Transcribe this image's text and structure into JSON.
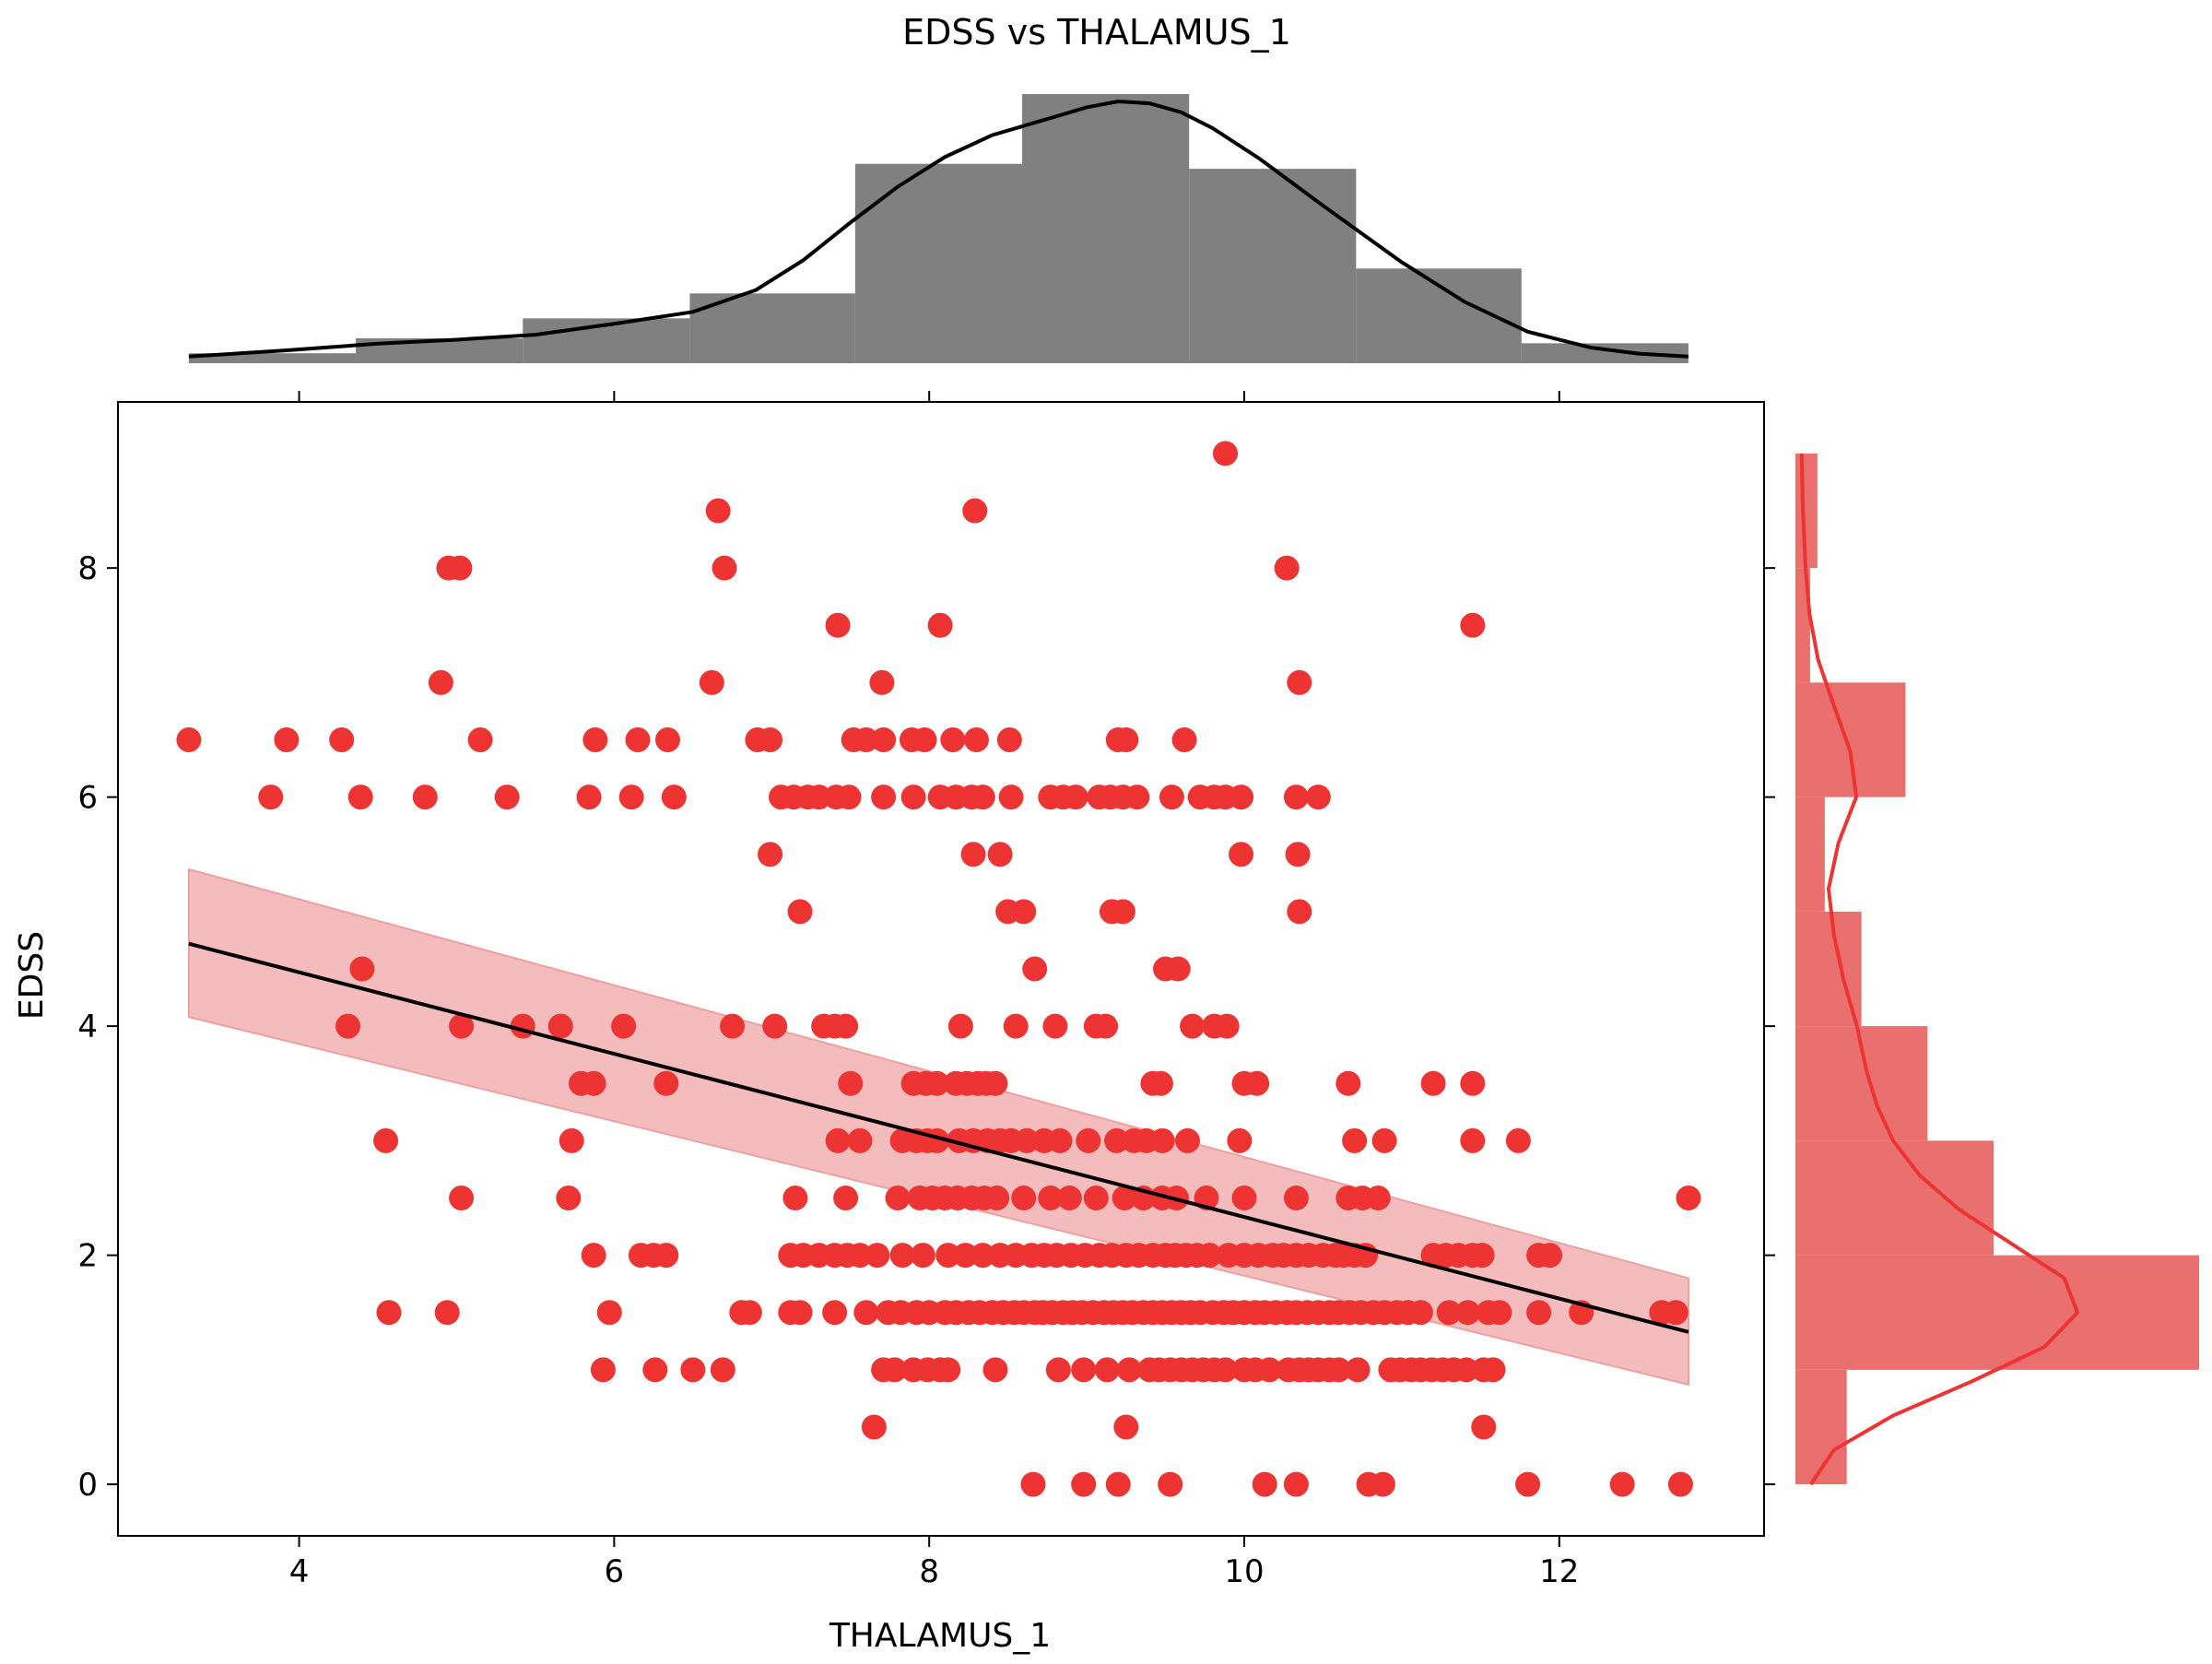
{
  "chart_data": {
    "type": "scatter",
    "title": "EDSS vs THALAMUS_1",
    "xlabel": "THALAMUS_1",
    "ylabel": "EDSS",
    "xlim": [
      2.85,
      13.3
    ],
    "ylim": [
      -0.45,
      9.45
    ],
    "xticks": [
      4,
      6,
      8,
      10,
      12
    ],
    "yticks": [
      0,
      2,
      4,
      6,
      8
    ],
    "grid": false,
    "legend": "none",
    "colors": {
      "points": "#ee3333",
      "regression_line": "#000000",
      "confidence_band": "#f4bcbc",
      "top_histogram": "#808080",
      "top_kde": "#000000",
      "right_histogram": "#ea6f6f",
      "right_kde": "#ee3333"
    },
    "regression": {
      "x": [
        3.3,
        12.82
      ],
      "y": [
        4.72,
        1.33
      ],
      "ci_lower": [
        4.08,
        0.87
      ],
      "ci_upper": [
        5.37,
        1.8
      ]
    },
    "points": [
      {
        "y": 9,
        "x": [
          9.88
        ]
      },
      {
        "y": 8.5,
        "x": [
          6.66,
          8.29
        ]
      },
      {
        "y": 8,
        "x": [
          4.95,
          5.02,
          6.7,
          10.27
        ]
      },
      {
        "y": 7.5,
        "x": [
          7.42,
          8.07,
          11.45
        ]
      },
      {
        "y": 7,
        "x": [
          4.9,
          6.62,
          7.7,
          10.35
        ]
      },
      {
        "y": 6.5,
        "x": [
          3.3,
          3.92,
          4.27,
          5.15,
          5.88,
          6.15,
          6.34,
          6.91,
          6.99,
          7.52,
          7.6,
          7.71,
          7.89,
          7.97,
          8.15,
          8.3,
          8.51,
          9.2,
          9.25,
          9.62
        ]
      },
      {
        "y": 6,
        "x": [
          3.82,
          4.39,
          4.8,
          5.32,
          5.84,
          6.11,
          6.38,
          7.06,
          7.14,
          7.23,
          7.3,
          7.41,
          7.49,
          7.71,
          7.9,
          8.07,
          8.17,
          8.27,
          8.34,
          8.52,
          8.77,
          8.85,
          8.93,
          9.08,
          9.15,
          9.23,
          9.32,
          9.54,
          9.72,
          9.81,
          9.88,
          9.98,
          10.33,
          10.47
        ]
      },
      {
        "y": 5.5,
        "x": [
          6.99,
          8.28,
          8.45,
          9.98,
          10.34
        ]
      },
      {
        "y": 5,
        "x": [
          7.18,
          8.5,
          8.6,
          9.16,
          9.23,
          10.35
        ]
      },
      {
        "y": 4.5,
        "x": [
          4.4,
          8.67,
          9.5,
          9.58
        ]
      },
      {
        "y": 4,
        "x": [
          4.31,
          5.03,
          5.42,
          5.66,
          6.06,
          6.75,
          7.02,
          7.33,
          7.4,
          7.47,
          8.2,
          8.55,
          8.8,
          9.06,
          9.12,
          9.67,
          9.81,
          9.89
        ]
      },
      {
        "y": 3.5,
        "x": [
          5.79,
          5.87,
          6.33,
          7.5,
          7.9,
          7.98,
          8.05,
          8.17,
          8.24,
          8.31,
          8.36,
          8.42,
          9.42,
          9.47,
          10.0,
          10.08,
          10.66,
          11.2,
          11.45
        ]
      },
      {
        "y": 3,
        "x": [
          4.55,
          5.73,
          7.42,
          7.56,
          7.83,
          7.92,
          7.99,
          8.05,
          8.19,
          8.28,
          8.37,
          8.45,
          8.52,
          8.62,
          8.73,
          8.83,
          9.01,
          9.19,
          9.3,
          9.38,
          9.48,
          9.64,
          9.97,
          10.7,
          10.89,
          11.45,
          11.74
        ]
      },
      {
        "y": 2.5,
        "x": [
          5.03,
          5.71,
          7.15,
          7.47,
          7.8,
          7.94,
          8.02,
          8.1,
          8.18,
          8.27,
          8.35,
          8.43,
          8.6,
          8.77,
          8.89,
          9.06,
          9.24,
          9.36,
          9.48,
          9.57,
          9.76,
          10.0,
          10.33,
          10.66,
          10.75,
          10.85,
          12.82
        ]
      },
      {
        "y": 2,
        "x": [
          5.87,
          6.17,
          6.25,
          6.33,
          7.12,
          7.2,
          7.3,
          7.4,
          7.48,
          7.56,
          7.67,
          7.83,
          7.96,
          8.12,
          8.23,
          8.34,
          8.45,
          8.55,
          8.65,
          8.73,
          8.81,
          8.9,
          8.99,
          9.08,
          9.16,
          9.25,
          9.33,
          9.42,
          9.5,
          9.56,
          9.63,
          9.7,
          9.78,
          9.9,
          10.0,
          10.09,
          10.18,
          10.25,
          10.33,
          10.41,
          10.5,
          10.58,
          10.63,
          10.7,
          10.77,
          11.2,
          11.28,
          11.36,
          11.45,
          11.51,
          11.87,
          11.94
        ]
      },
      {
        "y": 1.5,
        "x": [
          4.57,
          4.94,
          5.97,
          6.81,
          6.86,
          7.12,
          7.18,
          7.4,
          7.6,
          7.74,
          7.82,
          7.92,
          8.0,
          8.1,
          8.17,
          8.25,
          8.32,
          8.4,
          8.47,
          8.54,
          8.6,
          8.67,
          8.72,
          8.78,
          8.85,
          8.91,
          8.97,
          9.04,
          9.11,
          9.17,
          9.23,
          9.29,
          9.36,
          9.42,
          9.48,
          9.54,
          9.6,
          9.66,
          9.72,
          9.8,
          9.87,
          9.93,
          10.0,
          10.07,
          10.13,
          10.2,
          10.27,
          10.33,
          10.4,
          10.47,
          10.54,
          10.6,
          10.67,
          10.74,
          10.82,
          10.89,
          10.97,
          11.04,
          11.12,
          11.3,
          11.42,
          11.55,
          11.62,
          11.87,
          12.14,
          12.65,
          12.74
        ]
      },
      {
        "y": 1,
        "x": [
          5.93,
          6.26,
          6.5,
          6.69,
          7.71,
          7.78,
          7.9,
          7.99,
          8.07,
          8.12,
          8.42,
          8.82,
          8.98,
          9.13,
          9.27,
          9.4,
          9.46,
          9.53,
          9.6,
          9.67,
          9.74,
          9.81,
          9.88,
          10.0,
          10.07,
          10.16,
          10.28,
          10.35,
          10.41,
          10.47,
          10.54,
          10.6,
          10.72,
          10.93,
          10.99,
          11.06,
          11.12,
          11.19,
          11.26,
          11.33,
          11.41,
          11.52,
          11.58
        ]
      },
      {
        "y": 0.5,
        "x": [
          7.65,
          9.25,
          11.52
        ]
      },
      {
        "y": 0,
        "x": [
          8.66,
          8.98,
          9.2,
          9.53,
          10.13,
          10.33,
          10.79,
          10.88,
          11.8,
          12.4,
          12.77
        ]
      }
    ],
    "x_histogram": {
      "bin_edges": [
        3.3,
        4.36,
        5.42,
        6.48,
        7.53,
        8.59,
        9.65,
        10.71,
        11.76,
        12.82
      ],
      "counts": [
        2,
        5,
        9,
        14,
        40,
        54,
        39,
        19,
        4
      ]
    },
    "x_kde": {
      "x": [
        3.3,
        3.9,
        4.5,
        5.0,
        5.5,
        6.0,
        6.5,
        6.9,
        7.2,
        7.5,
        7.8,
        8.1,
        8.4,
        8.7,
        9.0,
        9.2,
        9.4,
        9.6,
        9.8,
        10.1,
        10.5,
        11.0,
        11.4,
        11.8,
        12.2,
        12.5,
        12.82
      ],
      "density": [
        0.3,
        0.9,
        1.6,
        2.0,
        2.5,
        3.6,
        4.8,
        7.0,
        10.0,
        13.8,
        17.4,
        20.4,
        22.6,
        24.0,
        25.4,
        26.0,
        25.8,
        24.9,
        23.3,
        20.2,
        15.5,
        9.8,
        5.8,
        2.8,
        1.2,
        0.6,
        0.3
      ]
    },
    "y_histogram": {
      "bin_edges": [
        0,
        1,
        2,
        3,
        4,
        5,
        6,
        7,
        8,
        9
      ],
      "counts": [
        14,
        110,
        54,
        36,
        18,
        8,
        30,
        4,
        6
      ]
    },
    "y_kde": {
      "y": [
        0,
        0.3,
        0.6,
        0.9,
        1.2,
        1.5,
        1.8,
        2.1,
        2.4,
        2.7,
        3.0,
        3.3,
        3.6,
        4.0,
        4.4,
        4.8,
        5.2,
        5.6,
        6.0,
        6.4,
        6.8,
        7.2,
        7.6,
        8.0,
        8.5,
        9.0
      ],
      "density": [
        1.5,
        5.0,
        14.0,
        26.0,
        37.0,
        42.0,
        40.0,
        32.0,
        24.0,
        18.0,
        14.0,
        11.6,
        10.0,
        8.5,
        6.5,
        5.0,
        4.2,
        5.7,
        8.4,
        7.5,
        5.0,
        2.6,
        1.3,
        0.7,
        0.3,
        0.1
      ]
    }
  }
}
